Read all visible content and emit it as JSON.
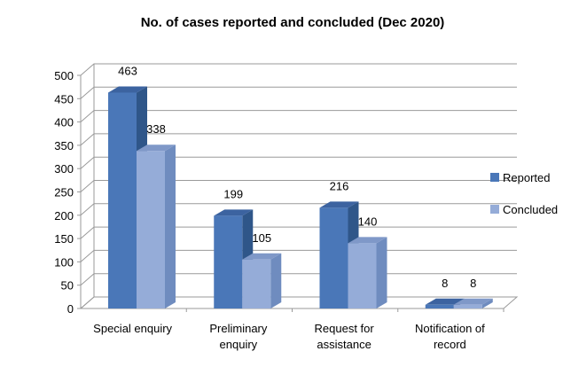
{
  "chart_data": {
    "type": "bar",
    "title": "No. of cases reported and concluded (Dec 2020)",
    "categories": [
      [
        "Special enquiry"
      ],
      [
        "Preliminary",
        "enquiry"
      ],
      [
        "Request for",
        "assistance"
      ],
      [
        "Notification of",
        "record"
      ]
    ],
    "series": [
      {
        "name": "Reported",
        "values": [
          463,
          199,
          216,
          8
        ],
        "color": "#4a77b8",
        "side": "#2f5689",
        "top": "#3c63a0"
      },
      {
        "name": "Concluded",
        "values": [
          338,
          105,
          140,
          8
        ],
        "color": "#95acd8",
        "side": "#6f8cbf",
        "top": "#7f98c8"
      }
    ],
    "ylim": [
      0,
      500
    ],
    "ytick_step": 50,
    "grid": true,
    "legend_position": "right",
    "style_3d": true
  }
}
